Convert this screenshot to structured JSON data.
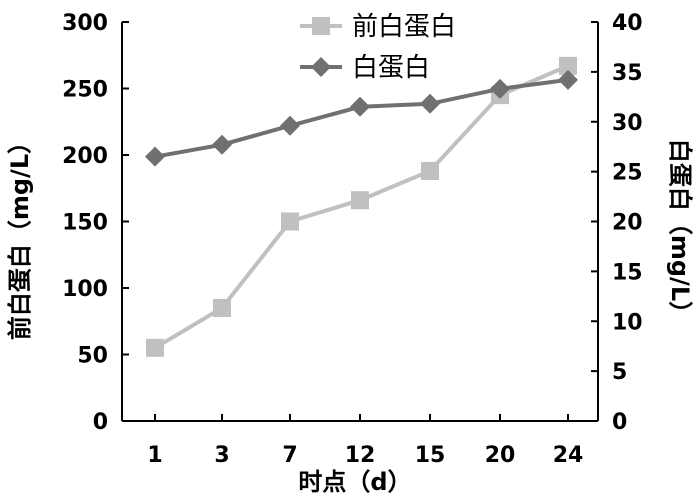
{
  "chart_data": {
    "type": "line",
    "x": [
      "1",
      "3",
      "7",
      "12",
      "15",
      "20",
      "24"
    ],
    "xlabel": "时点（d）",
    "y_left": {
      "label": "前白蛋白（mg/L）",
      "lim": [
        0,
        300
      ],
      "ticks": [
        0,
        50,
        100,
        150,
        200,
        250,
        300
      ]
    },
    "y_right": {
      "label": "白蛋白（mg/L）",
      "lim": [
        0,
        40
      ],
      "ticks": [
        0,
        5,
        10,
        15,
        20,
        25,
        30,
        35,
        40
      ]
    },
    "grid": false,
    "legend_position": "top-center",
    "series": [
      {
        "name": "前白蛋白",
        "axis": "left",
        "marker": "square",
        "color": "#c0c0c0",
        "values": [
          55,
          85,
          150,
          166,
          188,
          245,
          267
        ]
      },
      {
        "name": "白蛋白",
        "axis": "right",
        "marker": "diamond",
        "color": "#707070",
        "values": [
          26.5,
          27.7,
          29.6,
          31.5,
          31.8,
          33.3,
          34.2
        ]
      }
    ]
  }
}
